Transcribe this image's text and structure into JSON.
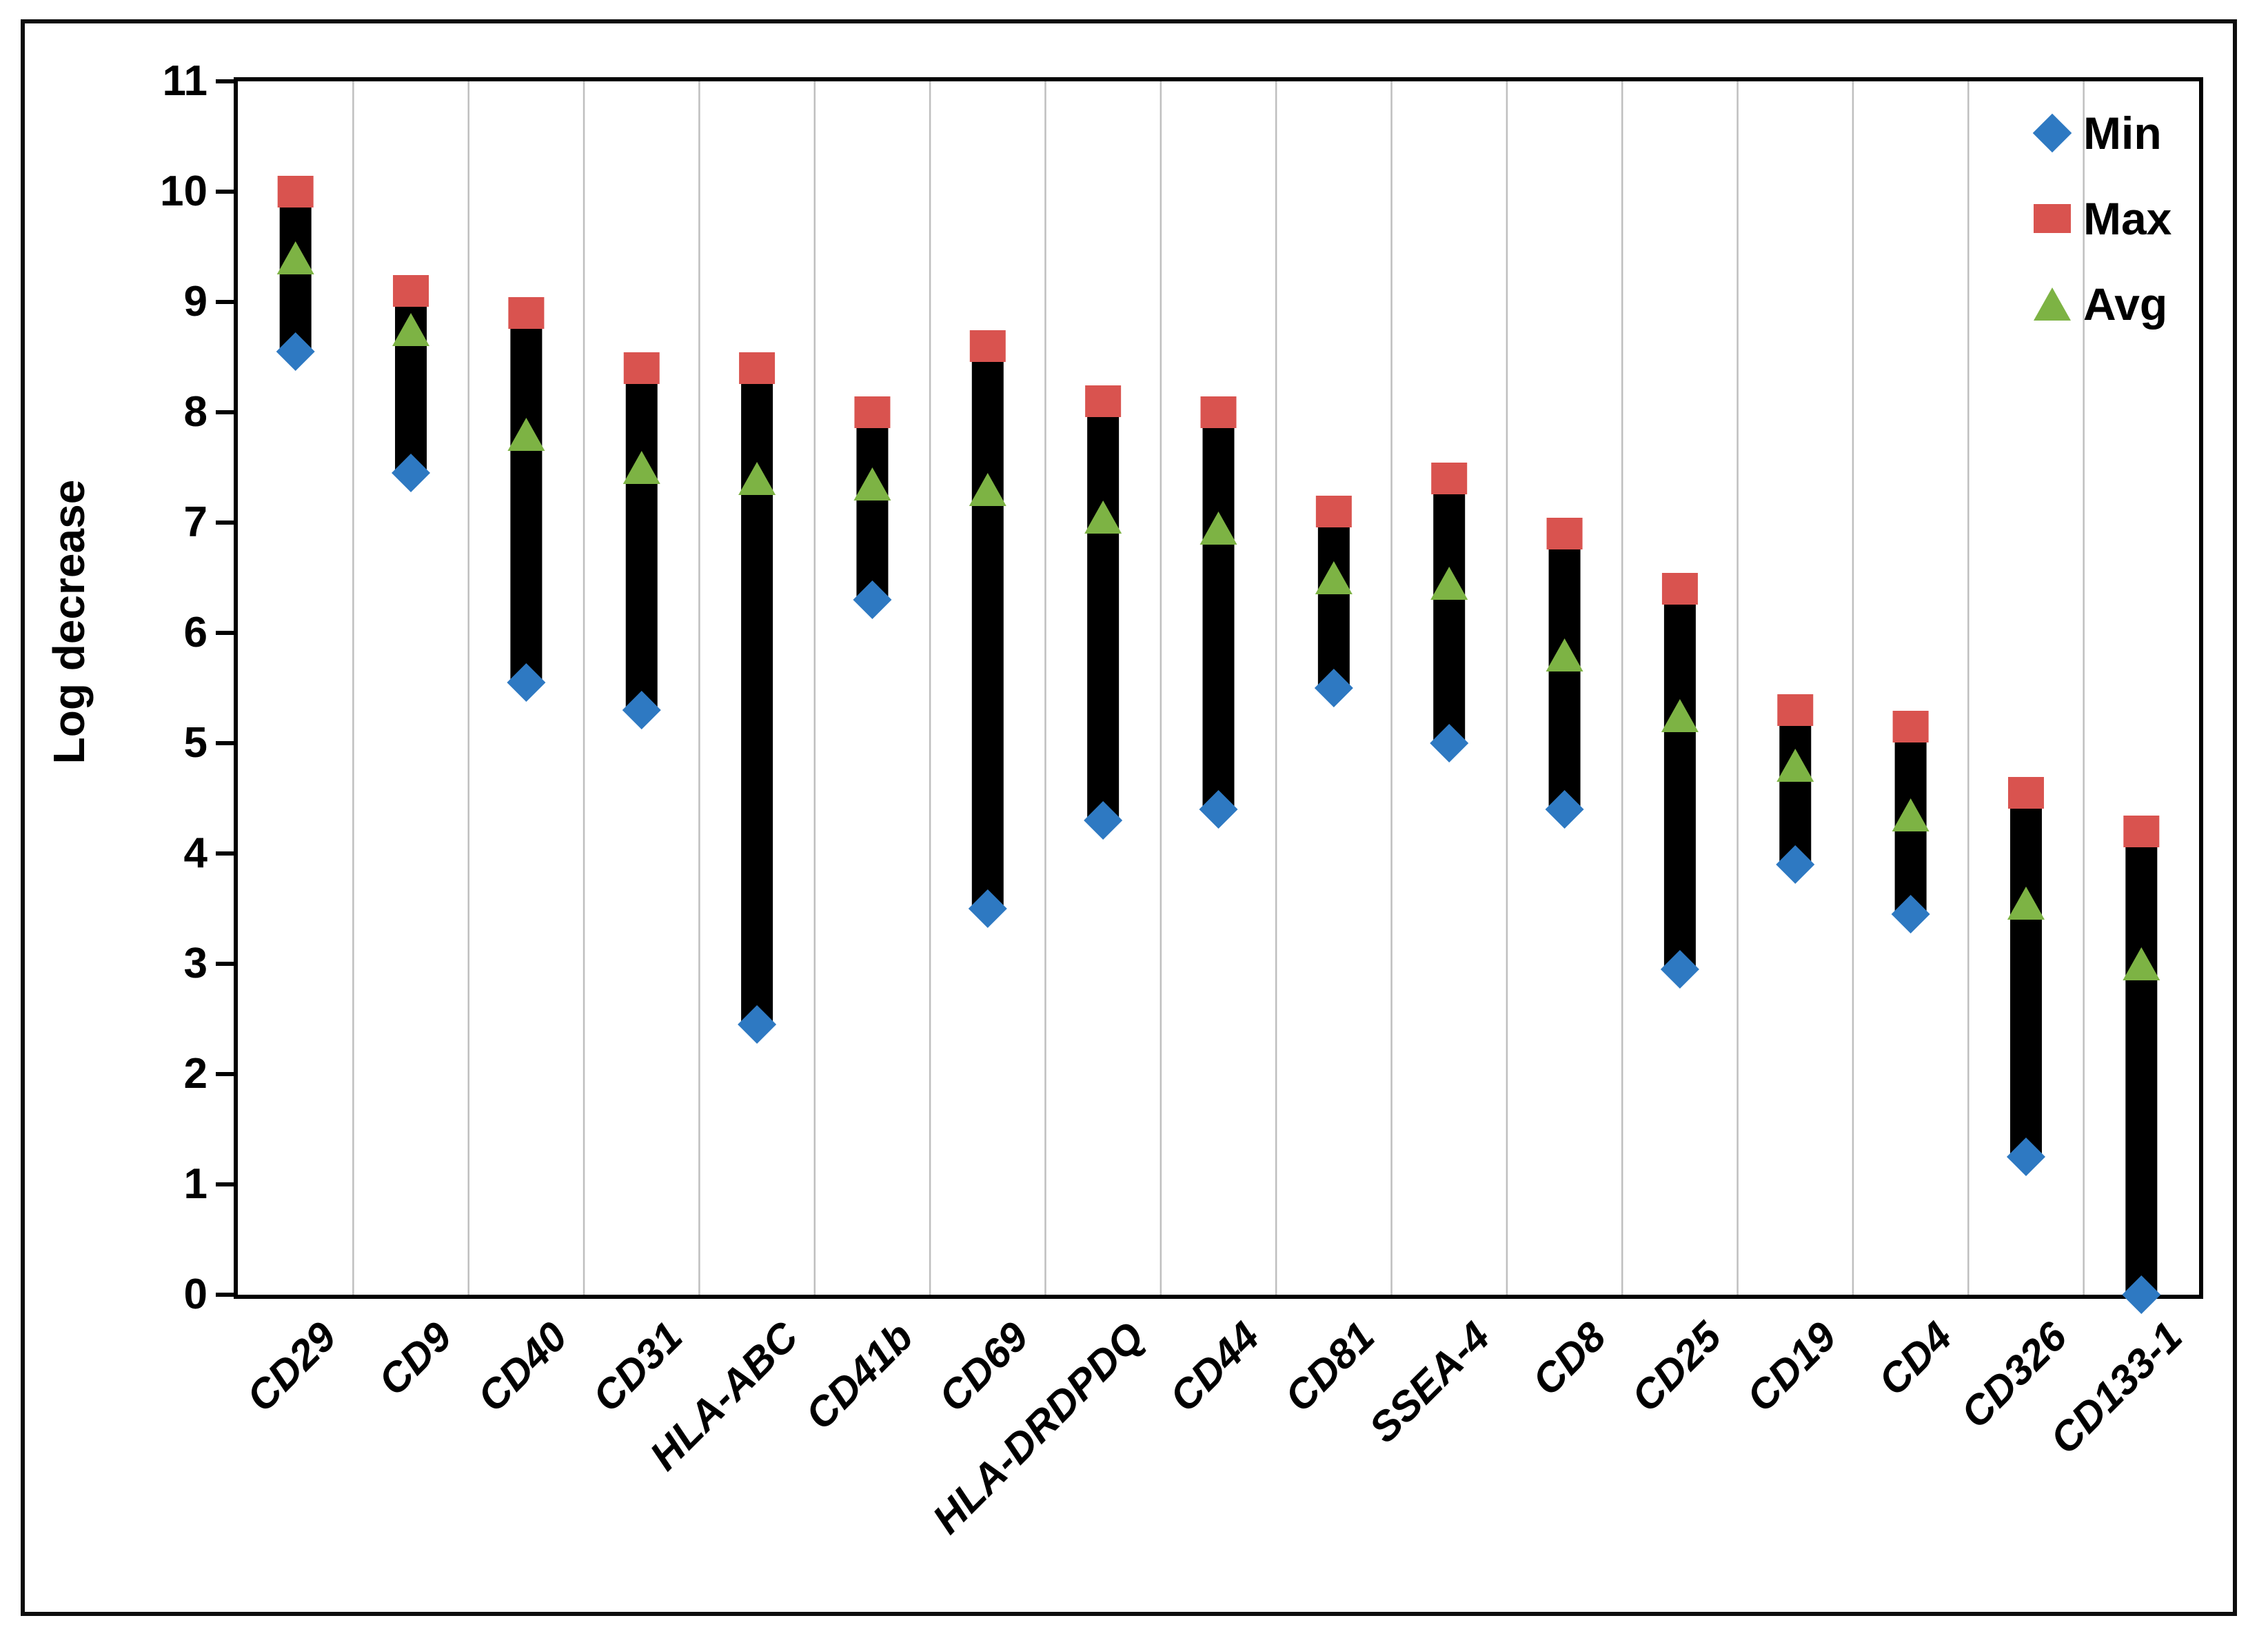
{
  "figure": {
    "ylabel": "Log decrease"
  },
  "legend": {
    "items": [
      {
        "key": "min",
        "label": "Min"
      },
      {
        "key": "max",
        "label": "Max"
      },
      {
        "key": "avg",
        "label": "Avg"
      }
    ]
  },
  "colors": {
    "min": "#2e79c2",
    "max": "#d9534f",
    "avg": "#7db344",
    "bar": "#000000",
    "gridline": "#bfbfbf",
    "axis": "#000000",
    "background": "#ffffff"
  },
  "chart_data": {
    "type": "bar",
    "subtype": "min-max-avg range bars with scatter markers",
    "title": "",
    "xlabel": "",
    "ylabel": "Log decrease",
    "ylim": [
      0,
      11
    ],
    "ytick_step": 1,
    "grid": "vertical category separator lines only",
    "legend_position": "top-right inside plot area",
    "categories": [
      "CD29",
      "CD9",
      "CD40",
      "CD31",
      "HLA-ABC",
      "CD41b",
      "CD69",
      "HLA-DRDPDQ",
      "CD44",
      "CD81",
      "SSEA-4",
      "CD8",
      "CD25",
      "CD19",
      "CD4",
      "CD326",
      "CD133-1"
    ],
    "series": [
      {
        "name": "Min",
        "marker": "diamond",
        "values": [
          8.55,
          7.45,
          5.55,
          5.3,
          2.45,
          6.3,
          3.5,
          4.3,
          4.4,
          5.5,
          5.0,
          4.4,
          2.95,
          3.9,
          3.45,
          1.25,
          0.0
        ]
      },
      {
        "name": "Max",
        "marker": "square",
        "values": [
          10.0,
          9.1,
          8.9,
          8.4,
          8.4,
          8.0,
          8.6,
          8.1,
          8.0,
          7.1,
          7.4,
          6.9,
          6.4,
          5.3,
          5.15,
          4.55,
          4.2
        ]
      },
      {
        "name": "Avg",
        "marker": "triangle",
        "values": [
          9.4,
          8.75,
          7.8,
          7.5,
          7.4,
          7.35,
          7.3,
          7.05,
          6.95,
          6.5,
          6.45,
          5.8,
          5.25,
          4.8,
          4.35,
          3.55,
          3.0
        ]
      }
    ],
    "range_bar": "thick black bar spans from Min value to Max value in each category"
  }
}
